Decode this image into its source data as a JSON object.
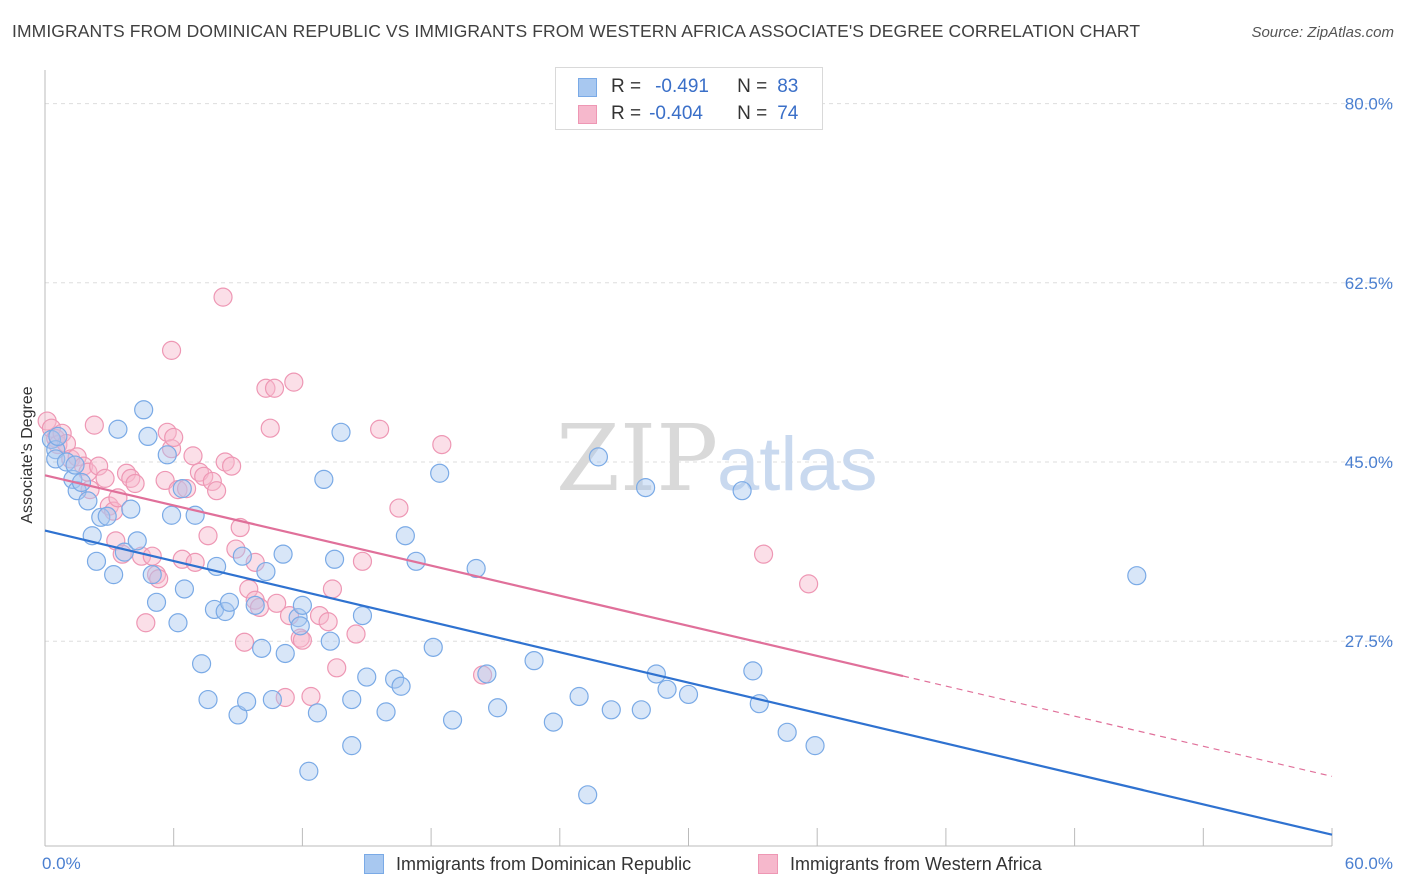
{
  "title": "IMMIGRANTS FROM DOMINICAN REPUBLIC VS IMMIGRANTS FROM WESTERN AFRICA ASSOCIATE'S DEGREE CORRELATION CHART",
  "source": "Source: ZipAtlas.com",
  "watermark": {
    "zip": "ZIP",
    "atlas": "atlas"
  },
  "legend": {
    "rows": [
      {
        "r_label": "R =",
        "r_value": "-0.491",
        "n_label": "N =",
        "n_value": "83"
      },
      {
        "r_label": "R =",
        "r_value": "-0.404",
        "n_label": "N =",
        "n_value": "74"
      }
    ]
  },
  "bottom_legend": {
    "series_1": "Immigrants from Dominican Republic",
    "series_2": "Immigrants from Western Africa"
  },
  "colors": {
    "blue_fill": "#a8c8f0",
    "blue_stroke": "#7aaae6",
    "blue_line": "#2f72d0",
    "pink_fill": "#f6b8cc",
    "pink_stroke": "#ee97b4",
    "pink_line": "#e0709a",
    "tick_text": "#4a7fd0",
    "grid": "#dddddd"
  },
  "chart_data": {
    "type": "scatter",
    "title": "IMMIGRANTS FROM DOMINICAN REPUBLIC VS IMMIGRANTS FROM WESTERN AFRICA ASSOCIATE'S DEGREE CORRELATION CHART",
    "xlabel": "",
    "ylabel": "Associate's Degree",
    "xlim": [
      0,
      60
    ],
    "ylim": [
      7.5,
      82.5
    ],
    "x_tick_labels": [
      "0.0%",
      "60.0%"
    ],
    "y_ticks": [
      27.5,
      45.0,
      62.5,
      80.0
    ],
    "y_tick_labels": [
      "27.5%",
      "45.0%",
      "62.5%",
      "80.0%"
    ],
    "grid": true,
    "series": [
      {
        "name": "Immigrants from Dominican Republic",
        "r": -0.491,
        "n": 83,
        "trend": {
          "x": [
            0,
            60
          ],
          "y": [
            38.3,
            8.6
          ]
        },
        "points": [
          [
            0.3,
            47.2
          ],
          [
            0.5,
            46.2
          ],
          [
            0.5,
            45.3
          ],
          [
            0.6,
            47.5
          ],
          [
            1.0,
            45.0
          ],
          [
            1.3,
            43.3
          ],
          [
            1.4,
            44.7
          ],
          [
            1.5,
            42.2
          ],
          [
            1.7,
            43.0
          ],
          [
            2.0,
            41.2
          ],
          [
            2.2,
            37.8
          ],
          [
            2.4,
            35.3
          ],
          [
            2.6,
            39.6
          ],
          [
            2.9,
            39.7
          ],
          [
            3.2,
            34.0
          ],
          [
            3.4,
            48.2
          ],
          [
            3.7,
            36.2
          ],
          [
            4.0,
            40.4
          ],
          [
            4.3,
            37.3
          ],
          [
            4.6,
            50.1
          ],
          [
            4.8,
            47.5
          ],
          [
            5.0,
            34.0
          ],
          [
            5.2,
            31.3
          ],
          [
            5.7,
            45.7
          ],
          [
            5.9,
            39.8
          ],
          [
            6.2,
            29.3
          ],
          [
            6.4,
            42.4
          ],
          [
            6.5,
            32.6
          ],
          [
            7.0,
            39.8
          ],
          [
            7.3,
            25.3
          ],
          [
            7.6,
            21.8
          ],
          [
            7.9,
            30.6
          ],
          [
            8.0,
            34.8
          ],
          [
            8.4,
            30.4
          ],
          [
            8.6,
            31.3
          ],
          [
            9.0,
            20.3
          ],
          [
            9.2,
            35.8
          ],
          [
            9.4,
            21.6
          ],
          [
            9.8,
            31.0
          ],
          [
            10.1,
            26.8
          ],
          [
            10.3,
            34.3
          ],
          [
            10.6,
            21.8
          ],
          [
            11.1,
            36.0
          ],
          [
            11.2,
            26.3
          ],
          [
            11.8,
            29.8
          ],
          [
            11.9,
            29.0
          ],
          [
            12.0,
            31.0
          ],
          [
            12.3,
            14.8
          ],
          [
            12.7,
            20.5
          ],
          [
            13.0,
            43.3
          ],
          [
            13.3,
            27.5
          ],
          [
            13.5,
            35.5
          ],
          [
            13.8,
            47.9
          ],
          [
            14.3,
            17.3
          ],
          [
            14.3,
            21.8
          ],
          [
            14.8,
            30.0
          ],
          [
            15.0,
            24.0
          ],
          [
            15.9,
            20.6
          ],
          [
            16.3,
            23.8
          ],
          [
            16.6,
            23.1
          ],
          [
            16.8,
            37.8
          ],
          [
            17.3,
            35.3
          ],
          [
            18.1,
            26.9
          ],
          [
            18.4,
            43.9
          ],
          [
            19.0,
            19.8
          ],
          [
            20.1,
            34.6
          ],
          [
            20.6,
            24.3
          ],
          [
            21.1,
            21.0
          ],
          [
            22.8,
            25.6
          ],
          [
            23.7,
            19.6
          ],
          [
            24.9,
            22.1
          ],
          [
            25.3,
            12.5
          ],
          [
            25.8,
            45.5
          ],
          [
            26.4,
            20.8
          ],
          [
            27.8,
            20.8
          ],
          [
            28.0,
            42.5
          ],
          [
            28.5,
            24.3
          ],
          [
            29.0,
            22.8
          ],
          [
            30.0,
            22.3
          ],
          [
            32.5,
            42.2
          ],
          [
            33.0,
            24.6
          ],
          [
            33.3,
            21.4
          ],
          [
            34.6,
            18.6
          ],
          [
            35.9,
            17.3
          ],
          [
            50.9,
            33.9
          ]
        ]
      },
      {
        "name": "Immigrants from Western Africa",
        "r": -0.404,
        "n": 74,
        "trend": {
          "x": [
            0,
            40
          ],
          "y": [
            43.7,
            24.1
          ]
        },
        "trend_dashed": {
          "x": [
            40,
            60
          ],
          "y": [
            24.1,
            14.3
          ]
        },
        "points": [
          [
            0.1,
            49.0
          ],
          [
            0.3,
            48.3
          ],
          [
            0.5,
            47.3
          ],
          [
            0.6,
            46.7
          ],
          [
            0.8,
            47.8
          ],
          [
            1.0,
            46.8
          ],
          [
            1.2,
            45.3
          ],
          [
            1.5,
            45.5
          ],
          [
            1.8,
            44.6
          ],
          [
            2.0,
            44.0
          ],
          [
            2.1,
            42.3
          ],
          [
            2.3,
            48.6
          ],
          [
            2.5,
            44.6
          ],
          [
            2.8,
            43.4
          ],
          [
            3.0,
            40.7
          ],
          [
            3.2,
            40.2
          ],
          [
            3.3,
            37.3
          ],
          [
            3.4,
            41.5
          ],
          [
            3.6,
            36.0
          ],
          [
            3.8,
            43.9
          ],
          [
            4.0,
            43.4
          ],
          [
            4.2,
            42.9
          ],
          [
            4.5,
            35.8
          ],
          [
            4.7,
            29.3
          ],
          [
            5.0,
            35.8
          ],
          [
            5.2,
            34.0
          ],
          [
            5.3,
            33.6
          ],
          [
            5.6,
            43.2
          ],
          [
            5.7,
            47.9
          ],
          [
            5.9,
            46.3
          ],
          [
            6.0,
            47.4
          ],
          [
            6.2,
            42.3
          ],
          [
            6.4,
            35.5
          ],
          [
            6.6,
            42.4
          ],
          [
            6.9,
            45.6
          ],
          [
            7.0,
            35.2
          ],
          [
            7.2,
            44.0
          ],
          [
            7.4,
            43.6
          ],
          [
            7.6,
            37.8
          ],
          [
            7.8,
            43.1
          ],
          [
            8.0,
            42.2
          ],
          [
            8.4,
            45.0
          ],
          [
            8.7,
            44.6
          ],
          [
            8.9,
            36.5
          ],
          [
            9.1,
            38.6
          ],
          [
            9.3,
            27.4
          ],
          [
            9.5,
            32.6
          ],
          [
            9.8,
            31.5
          ],
          [
            10.0,
            30.8
          ],
          [
            10.3,
            52.2
          ],
          [
            10.5,
            48.3
          ],
          [
            10.8,
            31.2
          ],
          [
            11.2,
            22.0
          ],
          [
            11.4,
            30.0
          ],
          [
            11.6,
            52.8
          ],
          [
            11.9,
            27.8
          ],
          [
            12.0,
            27.6
          ],
          [
            12.4,
            22.1
          ],
          [
            12.8,
            30.0
          ],
          [
            13.2,
            29.4
          ],
          [
            13.4,
            32.6
          ],
          [
            13.6,
            24.9
          ],
          [
            14.5,
            28.2
          ],
          [
            14.8,
            35.3
          ],
          [
            15.6,
            48.2
          ],
          [
            16.5,
            40.5
          ],
          [
            18.5,
            46.7
          ],
          [
            20.4,
            24.2
          ],
          [
            8.3,
            61.1
          ],
          [
            5.9,
            55.9
          ],
          [
            10.7,
            52.2
          ],
          [
            33.5,
            36.0
          ],
          [
            35.6,
            33.1
          ],
          [
            9.8,
            35.2
          ]
        ]
      }
    ]
  }
}
